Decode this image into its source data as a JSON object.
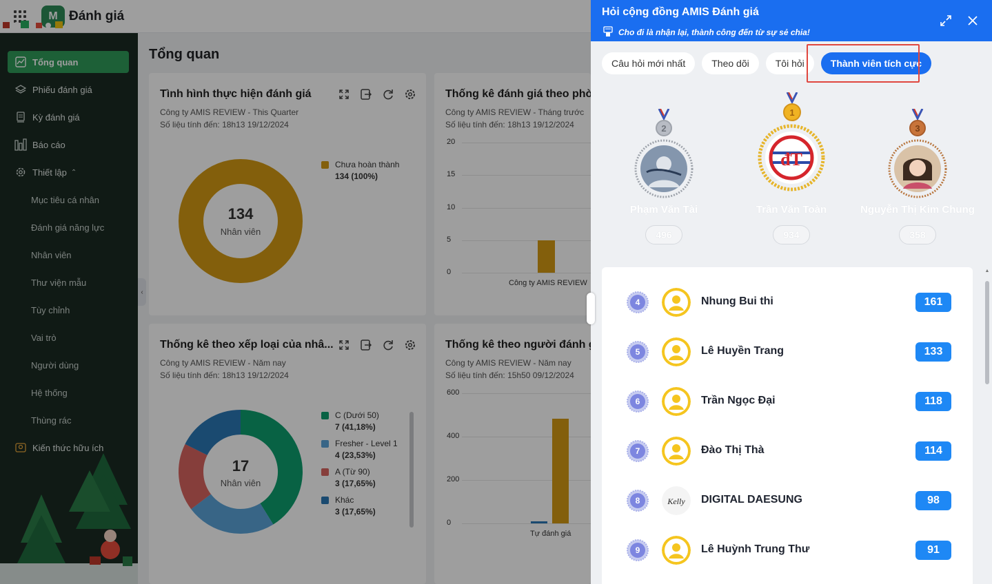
{
  "app": {
    "title": "Đánh giá",
    "logo_text": "M"
  },
  "sidebar": {
    "items": [
      {
        "label": "Tổng quan",
        "icon": "chart-line-icon"
      },
      {
        "label": "Phiếu đánh giá",
        "icon": "layers-icon"
      },
      {
        "label": "Kỳ đánh giá",
        "icon": "calendar-icon"
      },
      {
        "label": "Báo cáo",
        "icon": "bar-report-icon"
      },
      {
        "label": "Thiết lập",
        "icon": "gear-icon"
      }
    ],
    "sub_items": [
      "Mục tiêu cá nhân",
      "Đánh giá năng lực",
      "Nhân viên",
      "Thư viện mẫu",
      "Tùy chỉnh",
      "Vai trò",
      "Người dùng",
      "Hệ thống",
      "Thùng rác"
    ],
    "knowledge": {
      "label": "Kiến thức hữu ích",
      "icon": "lightbulb-icon"
    }
  },
  "main": {
    "title": "Tổng quan",
    "cards": [
      {
        "title": "Tình hình thực hiện đánh giá",
        "company": "Công ty AMIS REVIEW - This Quarter",
        "updated": "Số liệu tính đến: 18h13 19/12/2024",
        "center_value": "134",
        "center_label": "Nhân viên"
      },
      {
        "title": "Thống kê đánh giá theo phòn",
        "company": "Công ty AMIS REVIEW - Tháng trước",
        "updated": "Số liệu tính đến: 18h13 19/12/2024"
      },
      {
        "title": "Thống kê theo xếp loại của nhâ...",
        "company": "Công ty AMIS REVIEW - Năm nay",
        "updated": "Số liệu tính đến: 18h13 19/12/2024",
        "center_value": "17",
        "center_label": "Nhân viên"
      },
      {
        "title": "Thống kê theo người đánh gia",
        "company": "Công ty AMIS REVIEW - Năm nay",
        "updated": "Số liệu tính đến: 15h50 09/12/2024"
      }
    ]
  },
  "chart_data": [
    {
      "type": "pie",
      "categories": [
        "Chưa hoàn thành"
      ],
      "values": [
        134
      ],
      "labels": [
        "134 (100%)"
      ],
      "colors": [
        "#d39a14"
      ],
      "legend": "right"
    },
    {
      "type": "bar",
      "categories": [
        "Công ty AMIS REVIEW"
      ],
      "values": [
        5
      ],
      "ylim": [
        0,
        20
      ],
      "yticks": [
        "0",
        "5",
        "10",
        "15",
        "20"
      ],
      "colors": [
        "#d39a14"
      ]
    },
    {
      "type": "pie",
      "categories": [
        "C (Dưới 50)",
        "Fresher - Level 1",
        "A (Từ 90)",
        "Khác"
      ],
      "values": [
        7,
        4,
        3,
        3
      ],
      "labels": [
        "7 (41,18%)",
        "4 (23,53%)",
        "3 (17,65%)",
        "3 (17,65%)"
      ],
      "colors": [
        "#0e9f6e",
        "#5ba4d9",
        "#d9655f",
        "#2b78b5"
      ],
      "legend": "right"
    },
    {
      "type": "bar",
      "categories": [
        "Tự đánh giá"
      ],
      "series": [
        {
          "values": [
            8
          ],
          "color": "#2b78b5"
        },
        {
          "values": [
            484
          ],
          "color": "#d39a14"
        }
      ],
      "ylim": [
        0,
        600
      ],
      "yticks": [
        "0",
        "200",
        "400",
        "600"
      ]
    }
  ],
  "panel": {
    "title": "Hỏi cộng đồng AMIS Đánh giá",
    "slogan": "Cho đi là nhận lại, thành công đến từ sự sẻ chia!",
    "tabs": [
      "Câu hỏi mới nhất",
      "Theo dõi",
      "Tôi hỏi",
      "Thành viên tích cực"
    ],
    "active_tab": "Thành viên tích cực",
    "podium": [
      {
        "rank": "2",
        "name": "Phạm Văn Tài",
        "score": "496",
        "medal_color": "#b8bcc4"
      },
      {
        "rank": "1",
        "name": "Trần Văn Toàn",
        "score": "934",
        "medal_color": "#f0b323"
      },
      {
        "rank": "3",
        "name": "Nguyễn Thị Kim Chung",
        "score": "358",
        "medal_color": "#c8743a"
      }
    ],
    "list": [
      {
        "rank": "4",
        "name": "Nhung Bui thi",
        "score": "161"
      },
      {
        "rank": "5",
        "name": "Lê Huyền Trang",
        "score": "133"
      },
      {
        "rank": "6",
        "name": "Trần Ngọc Đại",
        "score": "118"
      },
      {
        "rank": "7",
        "name": "Đào Thị Thà",
        "score": "114"
      },
      {
        "rank": "8",
        "name": "DIGITAL DAESUNG",
        "score": "98",
        "avatar_text": "Kelly"
      },
      {
        "rank": "9",
        "name": "Lê Huỳnh Trung Thư",
        "score": "91"
      }
    ]
  }
}
